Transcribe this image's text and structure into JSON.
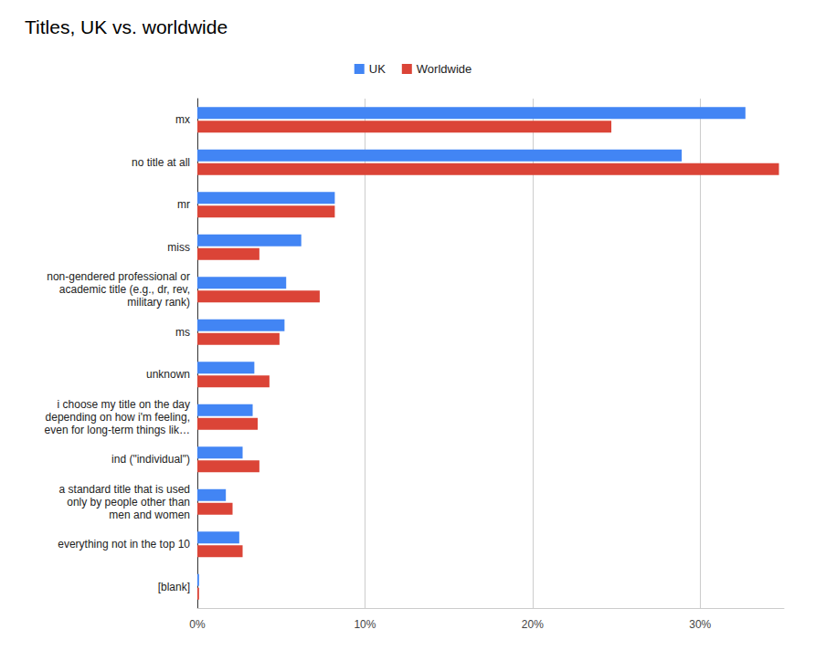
{
  "chart_data": {
    "type": "bar",
    "title": "Titles, UK vs. worldwide",
    "orientation": "horizontal",
    "legend": "top",
    "grid": true,
    "categories": [
      "mx",
      "no title at all",
      "mr",
      "miss",
      "non-gendered professional or\nacademic title (e.g., dr, rev,\nmilitary rank)",
      "ms",
      "unknown",
      "i choose my title on the day\ndepending on how i'm feeling,\neven for long-term things lik…",
      "ind (\"individual\")",
      "a standard title that is used\nonly by people other than\nmen and women",
      "everything not in the top 10",
      "[blank]"
    ],
    "series": [
      {
        "name": "UK",
        "color": "#4285f4",
        "values": [
          32.7,
          28.9,
          8.2,
          6.2,
          5.3,
          5.2,
          3.4,
          3.3,
          2.7,
          1.7,
          2.5,
          0.1
        ]
      },
      {
        "name": "Worldwide",
        "color": "#db4437",
        "values": [
          24.7,
          34.7,
          8.2,
          3.7,
          7.3,
          4.9,
          4.3,
          3.6,
          3.7,
          2.1,
          2.7,
          0.1
        ]
      }
    ],
    "xlim": [
      0,
      35
    ],
    "xticks": [
      {
        "value": 0,
        "label": "0%"
      },
      {
        "value": 10,
        "label": "10%"
      },
      {
        "value": 20,
        "label": "20%"
      },
      {
        "value": 30,
        "label": "30%"
      }
    ]
  }
}
